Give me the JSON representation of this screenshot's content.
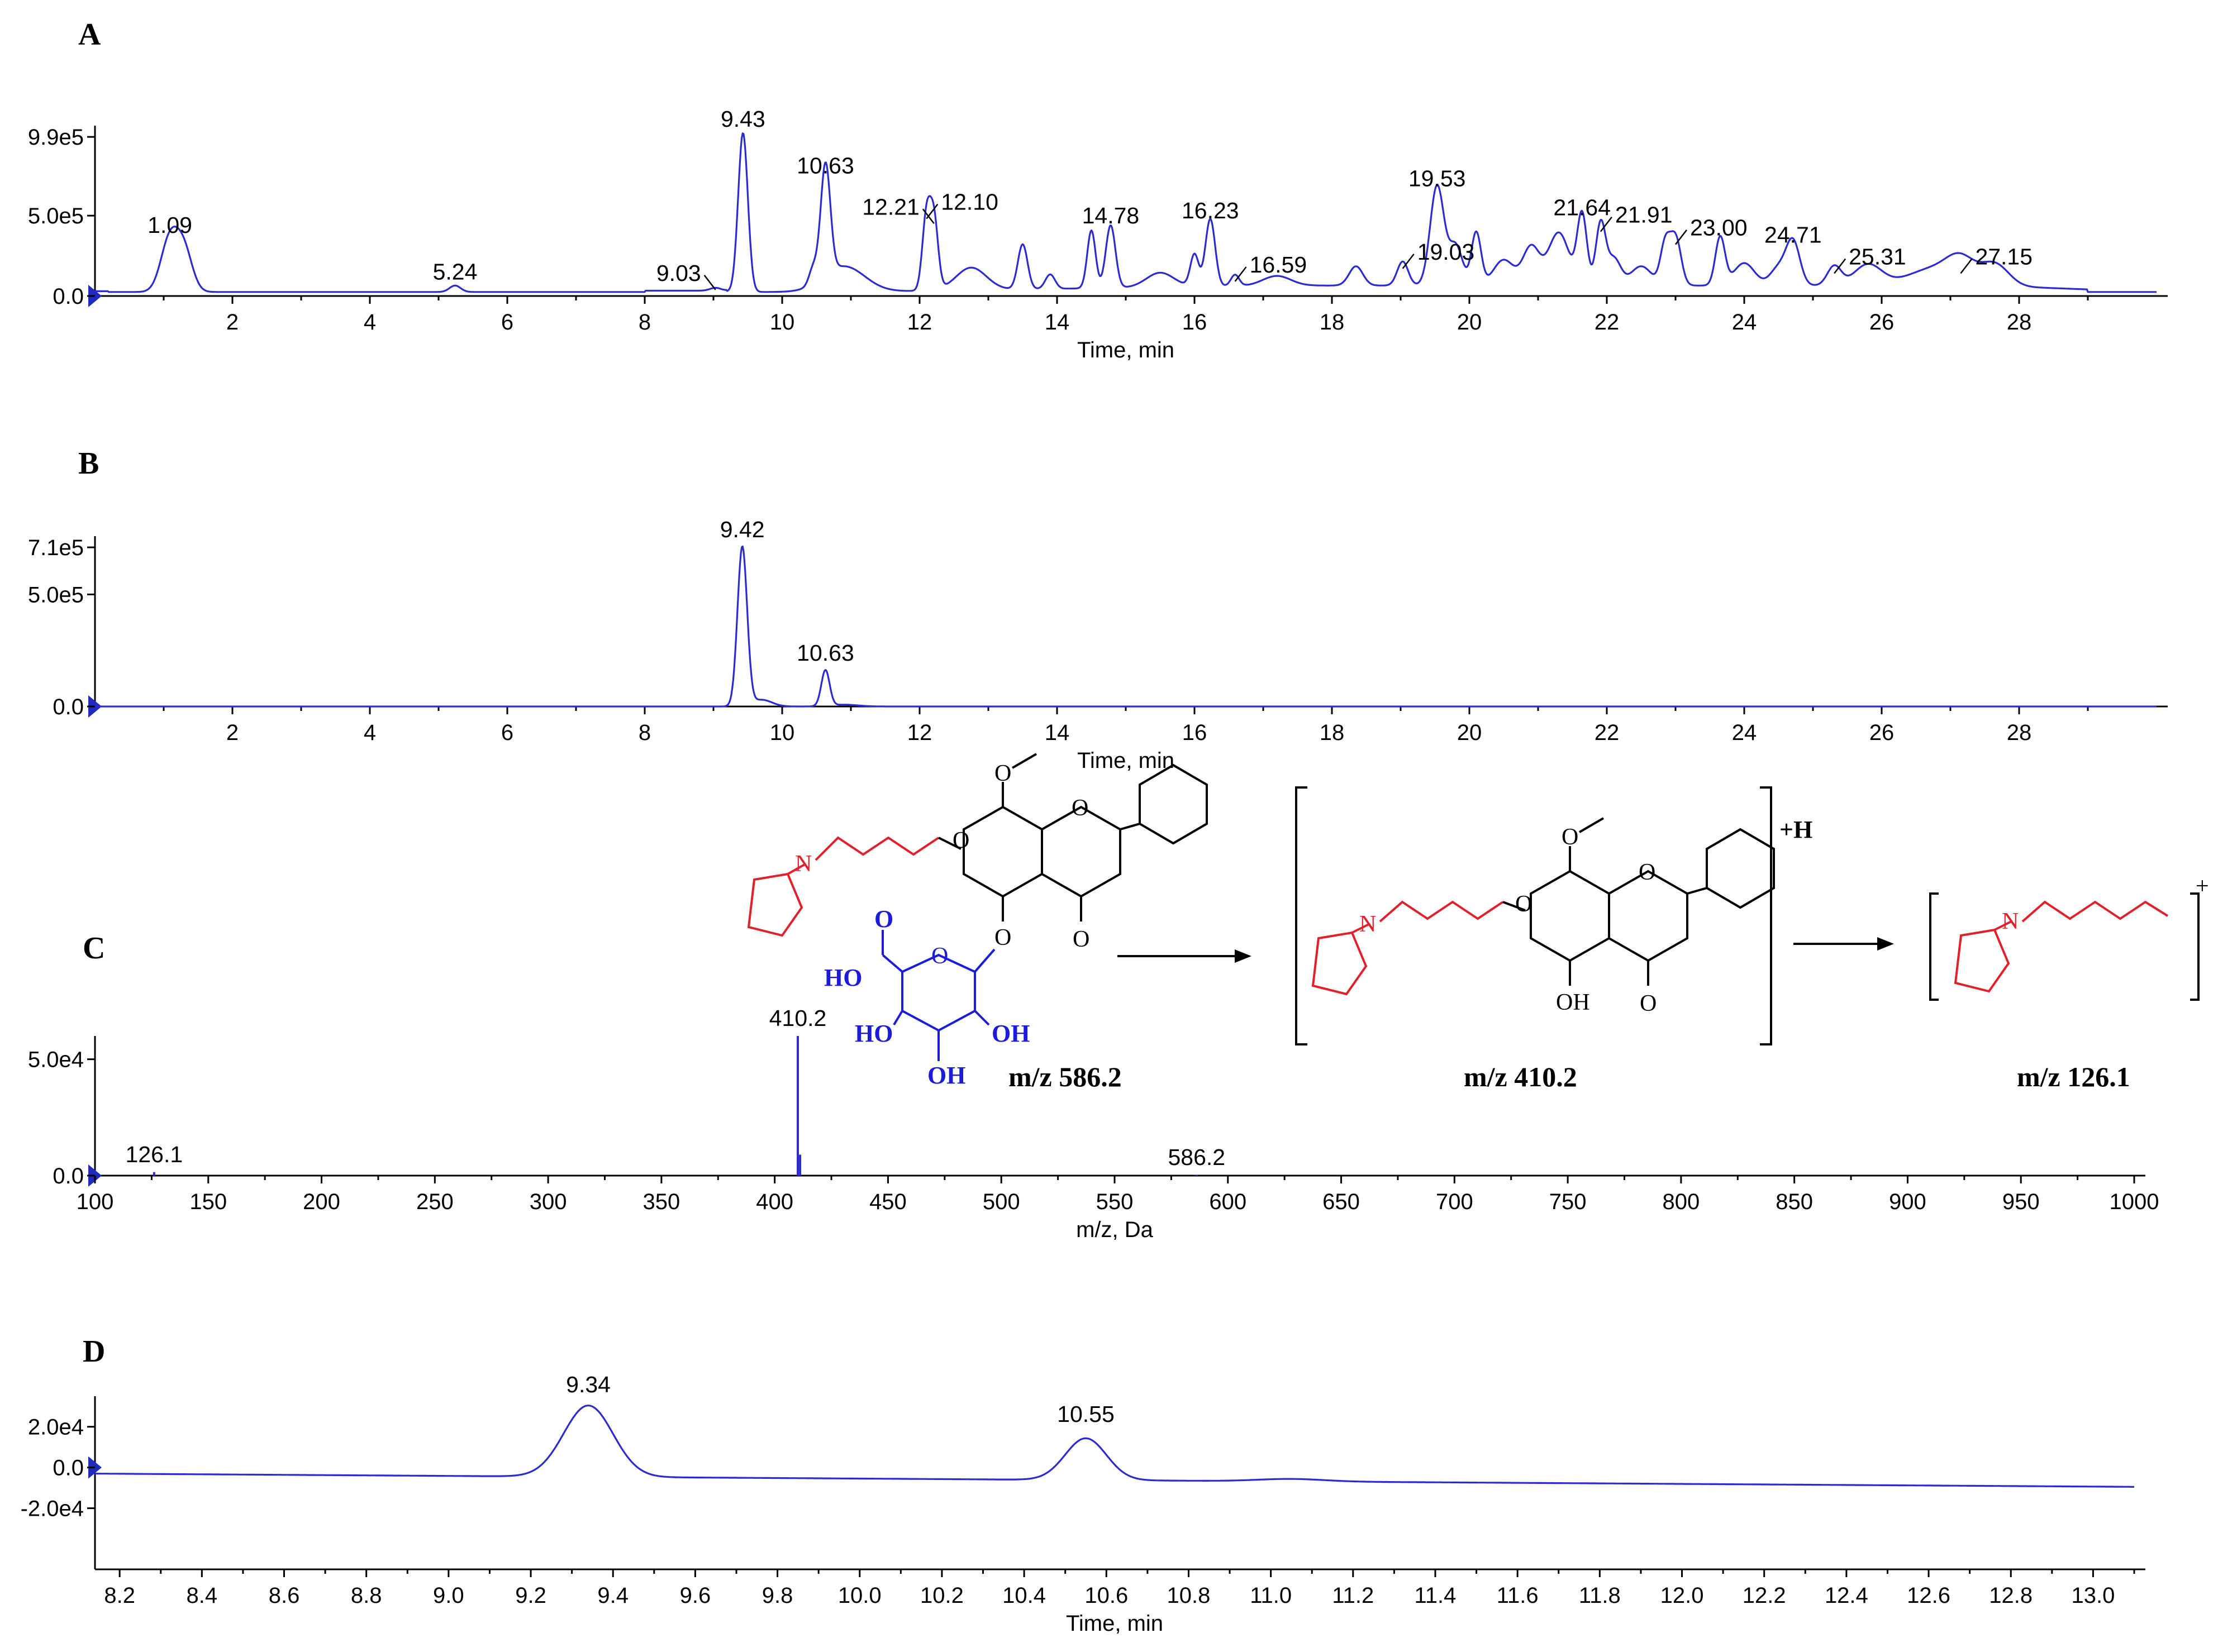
{
  "panels": {
    "A": "A",
    "B": "B",
    "C": "C",
    "D": "D"
  },
  "colors": {
    "trace": "#2b2bd0",
    "red_fragment": "#e0202a",
    "blue_glucuronide": "#1c1cd8"
  },
  "chart_data": [
    {
      "panel": "A",
      "type": "line",
      "xlabel": "Time, min",
      "ylabel": "",
      "xlim": [
        0,
        30
      ],
      "ylim": [
        0,
        990000
      ],
      "xticks": [
        2,
        4,
        6,
        8,
        10,
        12,
        14,
        16,
        18,
        20,
        22,
        24,
        26,
        28
      ],
      "yticks": [
        "0.0",
        "5.0e5",
        "9.9e5"
      ],
      "ytick_values": [
        0,
        500000,
        990000
      ],
      "baseline": 25000,
      "peaks": [
        {
          "x": 1.09,
          "y": 330000,
          "w": 0.13
        },
        {
          "x": 1.3,
          "y": 240000,
          "w": 0.12
        },
        {
          "x": 5.24,
          "y": 40000,
          "w": 0.08
        },
        {
          "x": 9.03,
          "y": 18000,
          "w": 0.08
        },
        {
          "x": 9.43,
          "y": 990000,
          "w": 0.07
        },
        {
          "x": 10.45,
          "y": 100000,
          "w": 0.06
        },
        {
          "x": 10.63,
          "y": 700000,
          "w": 0.07
        },
        {
          "x": 10.9,
          "y": 160000,
          "w": 0.3
        },
        {
          "x": 12.1,
          "y": 460000,
          "w": 0.06
        },
        {
          "x": 12.21,
          "y": 430000,
          "w": 0.06
        },
        {
          "x": 12.75,
          "y": 140000,
          "w": 0.22
        },
        {
          "x": 13.5,
          "y": 280000,
          "w": 0.07
        },
        {
          "x": 13.9,
          "y": 90000,
          "w": 0.07
        },
        {
          "x": 14.5,
          "y": 360000,
          "w": 0.06
        },
        {
          "x": 14.78,
          "y": 390000,
          "w": 0.07
        },
        {
          "x": 15.5,
          "y": 90000,
          "w": 0.2
        },
        {
          "x": 16.0,
          "y": 200000,
          "w": 0.06
        },
        {
          "x": 16.23,
          "y": 420000,
          "w": 0.07
        },
        {
          "x": 16.59,
          "y": 70000,
          "w": 0.06
        },
        {
          "x": 17.2,
          "y": 60000,
          "w": 0.2
        },
        {
          "x": 18.35,
          "y": 120000,
          "w": 0.1
        },
        {
          "x": 19.03,
          "y": 150000,
          "w": 0.08
        },
        {
          "x": 19.53,
          "y": 620000,
          "w": 0.1
        },
        {
          "x": 19.8,
          "y": 250000,
          "w": 0.1
        },
        {
          "x": 20.1,
          "y": 330000,
          "w": 0.07
        },
        {
          "x": 20.5,
          "y": 160000,
          "w": 0.15
        },
        {
          "x": 20.9,
          "y": 240000,
          "w": 0.12
        },
        {
          "x": 21.3,
          "y": 330000,
          "w": 0.15
        },
        {
          "x": 21.64,
          "y": 440000,
          "w": 0.07
        },
        {
          "x": 21.91,
          "y": 380000,
          "w": 0.07
        },
        {
          "x": 22.1,
          "y": 170000,
          "w": 0.1
        },
        {
          "x": 22.5,
          "y": 120000,
          "w": 0.15
        },
        {
          "x": 22.85,
          "y": 250000,
          "w": 0.07
        },
        {
          "x": 23.0,
          "y": 300000,
          "w": 0.08
        },
        {
          "x": 23.65,
          "y": 300000,
          "w": 0.07
        },
        {
          "x": 24.0,
          "y": 140000,
          "w": 0.15
        },
        {
          "x": 24.5,
          "y": 110000,
          "w": 0.12
        },
        {
          "x": 24.71,
          "y": 270000,
          "w": 0.1
        },
        {
          "x": 25.31,
          "y": 120000,
          "w": 0.1
        },
        {
          "x": 25.8,
          "y": 130000,
          "w": 0.2
        },
        {
          "x": 26.8,
          "y": 110000,
          "w": 0.4
        },
        {
          "x": 27.15,
          "y": 120000,
          "w": 0.2
        },
        {
          "x": 27.65,
          "y": 130000,
          "w": 0.2
        }
      ],
      "annotations": [
        {
          "text": "1.09",
          "x": 1.09,
          "y": 330000,
          "leader": false
        },
        {
          "text": "5.24",
          "x": 5.24,
          "y": 40000,
          "leader": false
        },
        {
          "text": "9.03",
          "x": 9.03,
          "y": 18000,
          "leader": true
        },
        {
          "text": "9.43",
          "x": 9.43,
          "y": 990000,
          "leader": false
        },
        {
          "text": "10.63",
          "x": 10.63,
          "y": 700000,
          "leader": false
        },
        {
          "text": "12.21",
          "x": 12.21,
          "y": 430000,
          "leader": true
        },
        {
          "text": "12.10",
          "x": 12.1,
          "y": 460000,
          "leader": true
        },
        {
          "text": "14.78",
          "x": 14.78,
          "y": 390000,
          "leader": false
        },
        {
          "text": "16.23",
          "x": 16.23,
          "y": 420000,
          "leader": false
        },
        {
          "text": "16.59",
          "x": 16.59,
          "y": 70000,
          "leader": true
        },
        {
          "text": "19.03",
          "x": 19.03,
          "y": 150000,
          "leader": true
        },
        {
          "text": "19.53",
          "x": 19.53,
          "y": 620000,
          "leader": false
        },
        {
          "text": "21.64",
          "x": 21.64,
          "y": 440000,
          "leader": false
        },
        {
          "text": "21.91",
          "x": 21.91,
          "y": 380000,
          "leader": true
        },
        {
          "text": "23.00",
          "x": 23.0,
          "y": 300000,
          "leader": true
        },
        {
          "text": "24.71",
          "x": 24.71,
          "y": 270000,
          "leader": false
        },
        {
          "text": "25.31",
          "x": 25.31,
          "y": 120000,
          "leader": true
        },
        {
          "text": "27.15",
          "x": 27.15,
          "y": 120000,
          "leader": true
        }
      ]
    },
    {
      "panel": "B",
      "type": "line",
      "xlabel": "Time, min",
      "ylabel": "",
      "xlim": [
        0,
        30
      ],
      "ylim": [
        0,
        710000
      ],
      "xticks": [
        2,
        4,
        6,
        8,
        10,
        12,
        14,
        16,
        18,
        20,
        22,
        24,
        26,
        28
      ],
      "yticks": [
        "0.0",
        "5.0e5",
        "7.1e5"
      ],
      "ytick_values": [
        0,
        500000,
        710000
      ],
      "baseline": 0,
      "peaks": [
        {
          "x": 9.42,
          "y": 710000,
          "w": 0.07
        },
        {
          "x": 9.7,
          "y": 30000,
          "w": 0.15
        },
        {
          "x": 10.63,
          "y": 160000,
          "w": 0.06
        },
        {
          "x": 10.9,
          "y": 8000,
          "w": 0.2
        }
      ],
      "annotations": [
        {
          "text": "9.42",
          "x": 9.42,
          "y": 710000,
          "leader": false
        },
        {
          "text": "10.63",
          "x": 10.63,
          "y": 160000,
          "leader": false
        }
      ]
    },
    {
      "panel": "C",
      "type": "bar",
      "xlabel": "m/z, Da",
      "ylabel": "",
      "xlim": [
        100,
        1000
      ],
      "ylim": [
        0,
        60000
      ],
      "xticks": [
        100,
        150,
        200,
        250,
        300,
        350,
        400,
        450,
        500,
        550,
        600,
        650,
        700,
        750,
        800,
        850,
        900,
        950,
        1000
      ],
      "yticks": [
        "0.0",
        "5.0e4"
      ],
      "ytick_values": [
        0,
        50000
      ],
      "sticks": [
        {
          "x": 126.1,
          "y": 1500
        },
        {
          "x": 410.2,
          "y": 60000
        },
        {
          "x": 411.2,
          "y": 9000
        },
        {
          "x": 586.2,
          "y": 300
        }
      ],
      "annotations": [
        {
          "text": "126.1",
          "x": 126.1,
          "y": 1500,
          "leader": false
        },
        {
          "text": "410.2",
          "x": 410.2,
          "y": 60000,
          "leader": false
        },
        {
          "text": "586.2",
          "x": 586.2,
          "y": 300,
          "leader": false
        }
      ]
    },
    {
      "panel": "D",
      "type": "line",
      "xlabel": "Time, min",
      "ylabel": "",
      "xlim": [
        8.14,
        13.1
      ],
      "ylim": [
        -50000,
        35000
      ],
      "xticks": [
        8.2,
        8.4,
        8.6,
        8.8,
        9.0,
        9.2,
        9.4,
        9.6,
        9.8,
        10.0,
        10.2,
        10.4,
        10.6,
        10.8,
        11.0,
        11.2,
        11.4,
        11.6,
        11.8,
        12.0,
        12.2,
        12.4,
        12.6,
        12.8,
        13.0
      ],
      "yticks": [
        "-2.0e4",
        "0.0",
        "2.0e4"
      ],
      "ytick_values": [
        -20000,
        0,
        20000
      ],
      "baseline_start": -3000,
      "baseline_end": -9500,
      "peaks": [
        {
          "x": 9.34,
          "y": 35000,
          "w": 0.06
        },
        {
          "x": 10.55,
          "y": 20500,
          "w": 0.05
        },
        {
          "x": 11.05,
          "y": 1200,
          "w": 0.08
        }
      ],
      "annotations": [
        {
          "text": "9.34",
          "x": 9.34,
          "y": 32000,
          "leader": false
        },
        {
          "text": "10.55",
          "x": 10.55,
          "y": 17500,
          "leader": false
        }
      ]
    }
  ],
  "scheme": {
    "mz_586": "m/z 586.2",
    "mz_410": "m/z 410.2",
    "mz_126": "m/z 126.1",
    "atom_O": "O",
    "atom_N": "N",
    "atom_HO": "HO",
    "atom_OH": "OH",
    "protonated": "+H",
    "plus": "+"
  }
}
